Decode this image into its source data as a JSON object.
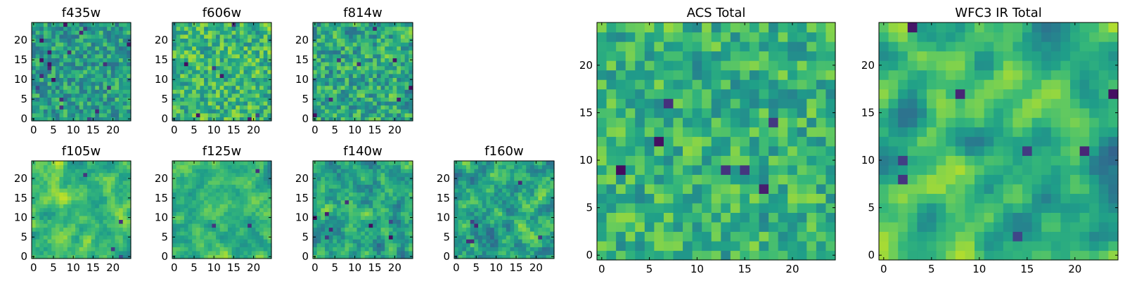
{
  "colormap": "viridis",
  "colors": {
    "stops": [
      "#440154",
      "#482878",
      "#3e4989",
      "#31688e",
      "#26828e",
      "#1f9e89",
      "#35b779",
      "#6ece58",
      "#b5de2b",
      "#fde725"
    ],
    "frame": "#000000",
    "background": "#ffffff"
  },
  "chart_data": [
    {
      "type": "heatmap",
      "title": "f435w",
      "grid_size": 25,
      "xticks": [
        0,
        5,
        10,
        15,
        20
      ],
      "yticks": [
        0,
        5,
        10,
        15,
        20
      ],
      "xlim": [
        -0.5,
        24.5
      ],
      "ylim": [
        -0.5,
        24.5
      ],
      "origin": "lower",
      "cells": "pixel values not readable; randomized texture",
      "seed": 11,
      "smooth": 0.15,
      "base": 0.56,
      "amp": 0.2,
      "dark_spots": 20
    },
    {
      "type": "heatmap",
      "title": "f606w",
      "grid_size": 25,
      "xticks": [
        0,
        5,
        10,
        15,
        20
      ],
      "yticks": [
        0,
        5,
        10,
        15,
        20
      ],
      "xlim": [
        -0.5,
        24.5
      ],
      "ylim": [
        -0.5,
        24.5
      ],
      "origin": "lower",
      "cells": "pixel values not readable; randomized texture",
      "seed": 23,
      "smooth": 0.2,
      "base": 0.66,
      "amp": 0.22,
      "dark_spots": 7
    },
    {
      "type": "heatmap",
      "title": "f814w",
      "grid_size": 25,
      "xticks": [
        0,
        5,
        10,
        15,
        20
      ],
      "yticks": [
        0,
        5,
        10,
        15,
        20
      ],
      "xlim": [
        -0.5,
        24.5
      ],
      "ylim": [
        -0.5,
        24.5
      ],
      "origin": "lower",
      "cells": "pixel values not readable; randomized texture",
      "seed": 37,
      "smooth": 0.25,
      "base": 0.6,
      "amp": 0.24,
      "dark_spots": 8
    },
    {
      "type": "heatmap",
      "title": "f105w",
      "grid_size": 25,
      "xticks": [
        0,
        5,
        10,
        15,
        20
      ],
      "yticks": [
        0,
        5,
        10,
        15,
        20
      ],
      "xlim": [
        -0.5,
        24.5
      ],
      "ylim": [
        -0.5,
        24.5
      ],
      "origin": "lower",
      "cells": "pixel values not readable; randomized texture",
      "seed": 41,
      "smooth": 0.6,
      "base": 0.68,
      "amp": 0.24,
      "dark_spots": 4
    },
    {
      "type": "heatmap",
      "title": "f125w",
      "grid_size": 25,
      "xticks": [
        0,
        5,
        10,
        15,
        20
      ],
      "yticks": [
        0,
        5,
        10,
        15,
        20
      ],
      "xlim": [
        -0.5,
        24.5
      ],
      "ylim": [
        -0.5,
        24.5
      ],
      "origin": "lower",
      "cells": "pixel values not readable; randomized texture",
      "seed": 53,
      "smooth": 0.6,
      "base": 0.64,
      "amp": 0.22,
      "dark_spots": 3
    },
    {
      "type": "heatmap",
      "title": "f140w",
      "grid_size": 25,
      "xticks": [
        0,
        5,
        10,
        15,
        20
      ],
      "yticks": [
        0,
        5,
        10,
        15,
        20
      ],
      "xlim": [
        -0.5,
        24.5
      ],
      "ylim": [
        -0.5,
        24.5
      ],
      "origin": "lower",
      "cells": "pixel values not readable; randomized texture",
      "seed": 67,
      "smooth": 0.5,
      "base": 0.58,
      "amp": 0.26,
      "dark_spots": 8
    },
    {
      "type": "heatmap",
      "title": "f160w",
      "grid_size": 25,
      "xticks": [
        0,
        5,
        10,
        15,
        20
      ],
      "yticks": [
        0,
        5,
        10,
        15,
        20
      ],
      "xlim": [
        -0.5,
        24.5
      ],
      "ylim": [
        -0.5,
        24.5
      ],
      "origin": "lower",
      "cells": "pixel values not readable; randomized texture",
      "seed": 79,
      "smooth": 0.5,
      "base": 0.58,
      "amp": 0.26,
      "dark_spots": 6
    },
    {
      "type": "heatmap",
      "title": "ACS Total",
      "grid_size": 25,
      "xticks": [
        0,
        5,
        10,
        15,
        20
      ],
      "yticks": [
        0,
        5,
        10,
        15,
        20
      ],
      "xlim": [
        -0.5,
        24.5
      ],
      "ylim": [
        -0.5,
        24.5
      ],
      "origin": "lower",
      "cells": "pixel values not readable; randomized texture",
      "seed": 97,
      "smooth": 0.25,
      "base": 0.64,
      "amp": 0.2,
      "dark_spots": 7
    },
    {
      "type": "heatmap",
      "title": "WFC3 IR Total",
      "grid_size": 25,
      "xticks": [
        0,
        5,
        10,
        15,
        20
      ],
      "yticks": [
        0,
        5,
        10,
        15,
        20
      ],
      "xlim": [
        -0.5,
        24.5
      ],
      "ylim": [
        -0.5,
        24.5
      ],
      "origin": "lower",
      "cells": "pixel values not readable; randomized texture",
      "seed": 113,
      "smooth": 0.75,
      "base": 0.6,
      "amp": 0.28,
      "dark_spots": 9
    }
  ]
}
